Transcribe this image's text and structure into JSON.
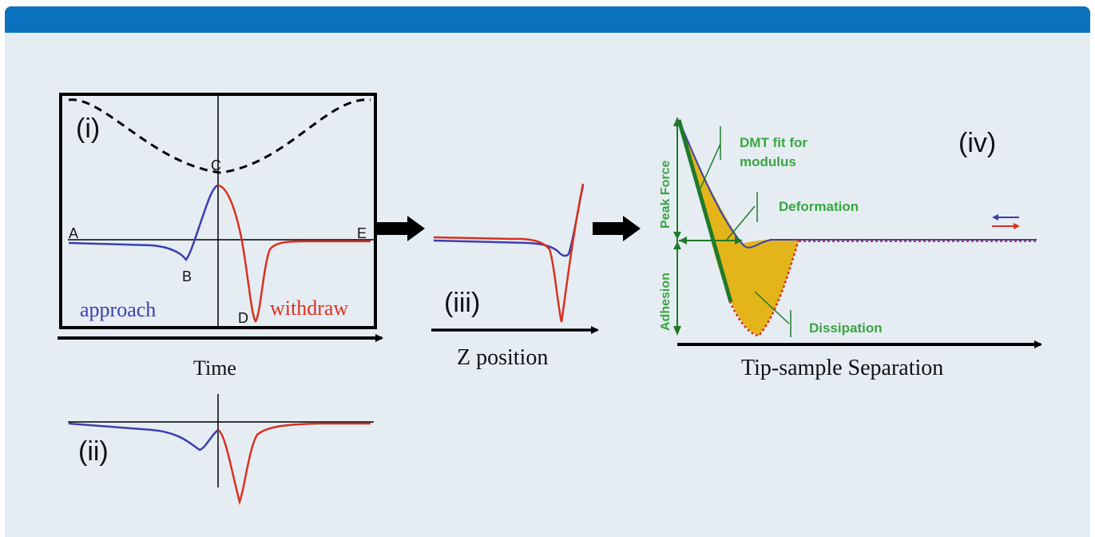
{
  "panels": {
    "i": {
      "label": "(i)",
      "points": {
        "a": "A",
        "b": "B",
        "c": "C",
        "d": "D",
        "e": "E"
      },
      "approach_label": "approach",
      "withdraw_label": "withdraw",
      "axis_label": "Time"
    },
    "ii": {
      "label": "(ii)"
    },
    "iii": {
      "label": "(iii)",
      "axis_label": "Z position"
    },
    "iv": {
      "label": "(iv)",
      "axis_label": "Tip-sample Separation",
      "annotations": {
        "dmt_line1": "DMT fit for",
        "dmt_line2": "modulus",
        "deformation": "Deformation",
        "dissipation": "Dissipation",
        "peak_force": "Peak Force",
        "adhesion": "Adhesion"
      }
    }
  },
  "colors": {
    "header": "#0a72be",
    "background": "#e5edf3",
    "approach": "#3b3fb0",
    "withdraw": "#d9301f",
    "annotation_green": "#3aa540",
    "dark_green": "#1f7a2a",
    "dissipation_fill": "#e3b51b"
  }
}
